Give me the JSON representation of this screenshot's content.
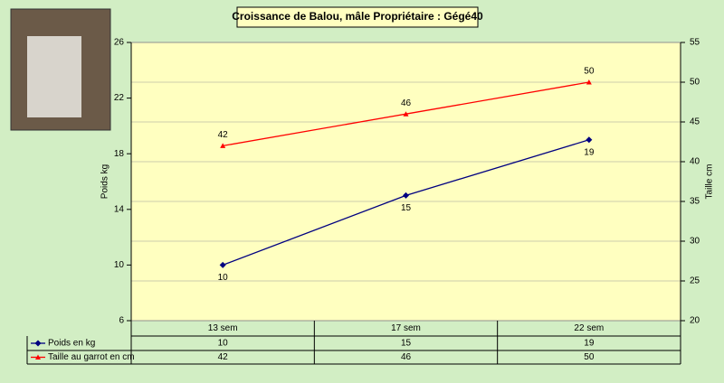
{
  "chart_data": {
    "type": "line",
    "title": "Croissance de Balou, mâle   Propriétaire : Gégé40",
    "categories": [
      "13 sem",
      "17 sem",
      "22 sem"
    ],
    "y_label": "Poids kg",
    "y2_label": "Taille cm",
    "series": [
      {
        "name": "Poids en kg",
        "color": "#000080",
        "values": [
          10,
          15,
          19
        ]
      },
      {
        "name": "Taille au garrot en cm",
        "color": "#ff0000",
        "values": [
          42,
          46,
          50
        ],
        "axis": "y2"
      }
    ],
    "ylim": [
      6,
      26
    ],
    "yticks": [
      6,
      10,
      14,
      18,
      22,
      26
    ],
    "y2lim": [
      20,
      55
    ],
    "y2ticks": [
      20,
      25,
      30,
      35,
      40,
      45,
      50,
      55
    ],
    "grid": true
  }
}
